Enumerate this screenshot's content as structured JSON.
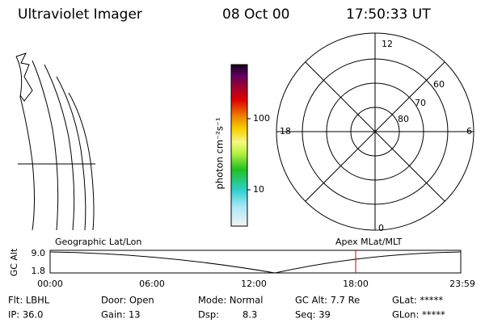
{
  "header": {
    "title": "Ultraviolet Imager",
    "date": "08 Oct 00",
    "time": "17:50:33 UT"
  },
  "colorbar": {
    "label": "photon cm⁻²s⁻¹",
    "ticks": [
      "100",
      "10"
    ]
  },
  "polar": {
    "clock_labels": [
      "12",
      "6",
      "18",
      "0"
    ],
    "lat_labels": [
      "60",
      "70",
      "80"
    ]
  },
  "timeline": {
    "left_label": "Geographic Lat/Lon",
    "right_label": "Apex MLat/MLT",
    "axis_label": "GC Alt",
    "yticks": [
      "9.0",
      "1.8"
    ],
    "xticks": [
      "00:00",
      "06:00",
      "12:00",
      "18:00",
      "23:59"
    ]
  },
  "footer": {
    "rows": [
      [
        "Flt: LBHL",
        "Door: Open",
        "Mode: Normal",
        "GC Alt: 7.7 Re",
        "GLat: *****"
      ],
      [
        "IP: 36.0",
        "Gain: 13",
        "Dsp:",
        "8.3",
        "Seq: 39",
        "GLon: *****"
      ]
    ]
  }
}
